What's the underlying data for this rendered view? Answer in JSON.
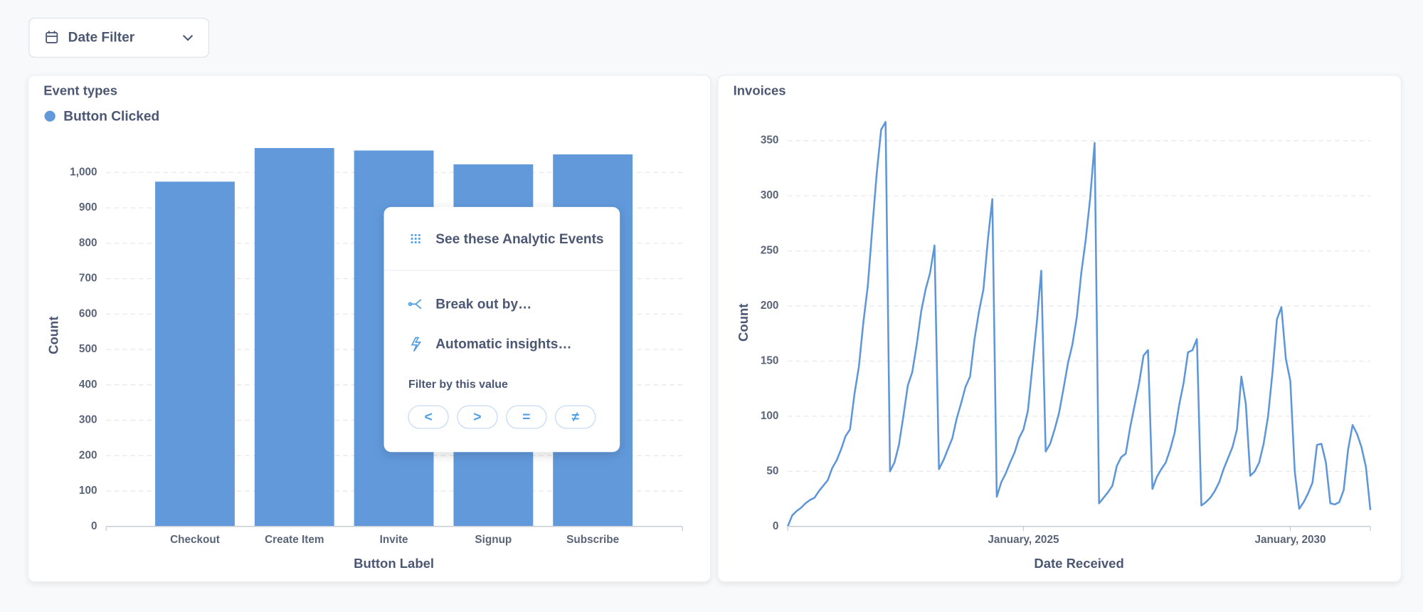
{
  "date_filter": {
    "label": "Date Filter"
  },
  "chart_data": [
    {
      "type": "bar",
      "title": "Event types",
      "categories": [
        "Checkout",
        "Create Item",
        "Invite",
        "Signup",
        "Subscribe"
      ],
      "series": [
        {
          "name": "Button Clicked",
          "color": "#6199db",
          "values": [
            974,
            1069,
            1062,
            1023,
            1051
          ]
        }
      ],
      "xlabel": "Button Label",
      "ylabel": "Count",
      "ylim": [
        0,
        1080
      ],
      "yticks": [
        0,
        100,
        200,
        300,
        400,
        500,
        600,
        700,
        800,
        900,
        {
          "value": 1000,
          "label": "1,000"
        }
      ],
      "grid": true,
      "legend": "top-left"
    },
    {
      "type": "line",
      "title": "Invoices",
      "color": "#5d96d9",
      "x": [
        "2020-08",
        "2020-09",
        "2020-10",
        "2020-11",
        "2020-12",
        "2021-01",
        "2021-02",
        "2021-03",
        "2021-04",
        "2021-05",
        "2021-06",
        "2021-07",
        "2021-08",
        "2021-09",
        "2021-10",
        "2021-11",
        "2021-12",
        "2022-01",
        "2022-02",
        "2022-03",
        "2022-04",
        "2022-05",
        "2022-06",
        "2022-07",
        "2022-08",
        "2022-09",
        "2022-10",
        "2022-11",
        "2022-12",
        "2023-01",
        "2023-02",
        "2023-03",
        "2023-04",
        "2023-05",
        "2023-06",
        "2023-07",
        "2023-08",
        "2023-09",
        "2023-10",
        "2023-11",
        "2023-12",
        "2024-01",
        "2024-02",
        "2024-03",
        "2024-04",
        "2024-05",
        "2024-06",
        "2024-07",
        "2024-08",
        "2024-09",
        "2024-10",
        "2024-11",
        "2024-12",
        "2025-01",
        "2025-02",
        "2025-03",
        "2025-04",
        "2025-05",
        "2025-06",
        "2025-07",
        "2025-08",
        "2025-09",
        "2025-10",
        "2025-11",
        "2025-12",
        "2026-01",
        "2026-02",
        "2026-03",
        "2026-04",
        "2026-05",
        "2026-06",
        "2026-07",
        "2026-08",
        "2026-09",
        "2026-10",
        "2026-11",
        "2026-12",
        "2027-01",
        "2027-02",
        "2027-03",
        "2027-04",
        "2027-05",
        "2027-06",
        "2027-07",
        "2027-08",
        "2027-09",
        "2027-10",
        "2027-11",
        "2027-12",
        "2028-01",
        "2028-02",
        "2028-03",
        "2028-04",
        "2028-05",
        "2028-06",
        "2028-07",
        "2028-08",
        "2028-09",
        "2028-10",
        "2028-11",
        "2028-12",
        "2029-01",
        "2029-02",
        "2029-03",
        "2029-04",
        "2029-05",
        "2029-06",
        "2029-07",
        "2029-08",
        "2029-09",
        "2029-10",
        "2029-11",
        "2029-12",
        "2030-01",
        "2030-02",
        "2030-03",
        "2030-04",
        "2030-05",
        "2030-06",
        "2030-07",
        "2030-08",
        "2030-09",
        "2030-10",
        "2030-11",
        "2030-12",
        "2031-01",
        "2031-02",
        "2031-03",
        "2031-04",
        "2031-05",
        "2031-06",
        "2031-07"
      ],
      "values": [
        0,
        10,
        14,
        17,
        21,
        24,
        26,
        32,
        37,
        42,
        53,
        60,
        70,
        82,
        88,
        120,
        145,
        185,
        218,
        270,
        320,
        360,
        367,
        50,
        58,
        74,
        100,
        128,
        140,
        165,
        195,
        215,
        230,
        255,
        52,
        60,
        70,
        80,
        98,
        112,
        127,
        136,
        170,
        195,
        215,
        260,
        297,
        27,
        40,
        48,
        58,
        67,
        80,
        88,
        105,
        145,
        185,
        232,
        68,
        75,
        88,
        103,
        125,
        148,
        165,
        190,
        230,
        260,
        298,
        348,
        21,
        26,
        31,
        37,
        55,
        63,
        66,
        90,
        110,
        130,
        155,
        160,
        34,
        45,
        52,
        58,
        70,
        85,
        110,
        130,
        158,
        160,
        170,
        19,
        22,
        26,
        32,
        40,
        52,
        62,
        72,
        88,
        136,
        111,
        46,
        50,
        58,
        75,
        100,
        140,
        188,
        199,
        152,
        132,
        50,
        16,
        22,
        30,
        40,
        74,
        75,
        58,
        21,
        20,
        22,
        33,
        70,
        92,
        84,
        72,
        54,
        15
      ],
      "xlabel": "Date Received",
      "ylabel": "Count",
      "xlim": [
        "2020-08",
        "2031-07"
      ],
      "xticks": [
        {
          "value": "2025-01",
          "label": "January, 2025"
        },
        {
          "value": "2030-01",
          "label": "January, 2030"
        }
      ],
      "ylim": [
        0,
        370
      ],
      "yticks": [
        0,
        50,
        100,
        150,
        200,
        250,
        300,
        350
      ],
      "grid": true
    }
  ],
  "popover": {
    "items": [
      "See these Analytic Events",
      "Break out by…",
      "Automatic insights…"
    ],
    "filter_label": "Filter by this value",
    "filter_buttons": [
      "<",
      ">",
      "=",
      "≠"
    ]
  }
}
